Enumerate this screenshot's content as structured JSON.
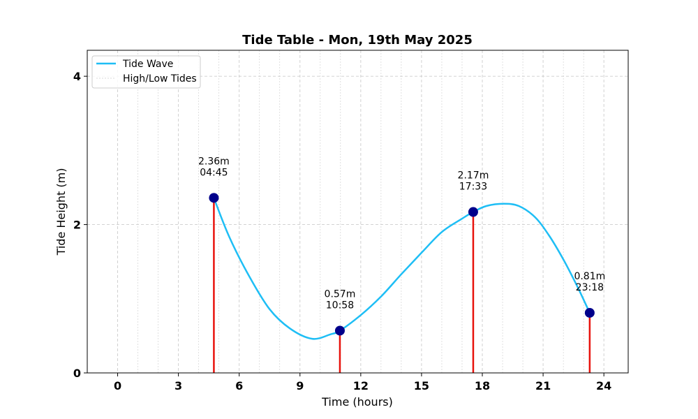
{
  "chart_data": {
    "type": "line",
    "title": "Tide Table - Mon, 19th May 2025",
    "xlabel": "Time (hours)",
    "ylabel": "Tide Height (m)",
    "xlim": [
      -1.5,
      25.2
    ],
    "ylim": [
      0,
      4.35
    ],
    "xticks": [
      0,
      3,
      6,
      9,
      12,
      15,
      18,
      21,
      24
    ],
    "yticks": [
      0,
      2,
      4
    ],
    "grid": true,
    "legend": {
      "placement": "top-left",
      "entries": [
        "Tide Wave",
        "High/Low Tides"
      ]
    },
    "series": [
      {
        "name": "Tide Wave",
        "color": "#1EBEF5",
        "x": [
          4.75,
          5.5,
          6.5,
          7.5,
          8.5,
          9.6,
          10.5,
          10.97,
          12,
          13,
          14,
          15,
          16,
          17,
          17.55,
          18.2,
          19.05,
          19.8,
          20.6,
          21.3,
          22,
          22.7,
          23.3
        ],
        "y": [
          2.36,
          1.84,
          1.3,
          0.86,
          0.6,
          0.46,
          0.52,
          0.57,
          0.78,
          1.03,
          1.33,
          1.62,
          1.9,
          2.08,
          2.17,
          2.25,
          2.28,
          2.25,
          2.1,
          1.85,
          1.53,
          1.16,
          0.81
        ]
      }
    ],
    "tides": [
      {
        "x": 4.75,
        "y": 2.36,
        "height": "2.36m",
        "time": "04:45"
      },
      {
        "x": 10.97,
        "y": 0.57,
        "height": "0.57m",
        "time": "10:58"
      },
      {
        "x": 17.55,
        "y": 2.17,
        "height": "2.17m",
        "time": "17:33"
      },
      {
        "x": 23.3,
        "y": 0.81,
        "height": "0.81m",
        "time": "23:18"
      }
    ],
    "colors": {
      "wave": "#1EBEF5",
      "stem": "#E8120C",
      "marker": "#00008B",
      "grid": "#CCCCCC"
    }
  }
}
